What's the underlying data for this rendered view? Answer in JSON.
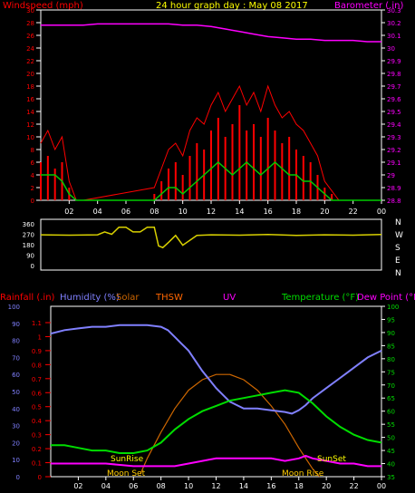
{
  "colors": {
    "wind": "#ff0000",
    "gust": "#ff0000",
    "avgwind": "#00cc00",
    "baro": "#ff00ff",
    "dir": "#d8d000",
    "rain": "#ff0000",
    "humidity": "#8080ff",
    "solar": "#cc6600",
    "thsw": "#ff6600",
    "uv": "#ff00ff",
    "temp": "#00dd00",
    "dew": "#ff00ff",
    "sunrise": "#ffff00",
    "sunset": "#ffff00",
    "moon": "#ffcc00",
    "axis": "#ffffff"
  },
  "chart_data": [
    {
      "type": "line",
      "title": "24 hour graph day : May 08 2017",
      "left_label": "Windspeed (mph)",
      "right_label": "Barometer (.in)",
      "x_ticks": [
        "02",
        "04",
        "06",
        "08",
        "10",
        "12",
        "14",
        "16",
        "18",
        "20",
        "22",
        "00"
      ],
      "y_ticks_left": [
        "0",
        "2",
        "4",
        "6",
        "8",
        "10",
        "12",
        "14",
        "16",
        "18",
        "20",
        "22",
        "24",
        "26",
        "28",
        "30"
      ],
      "y_ticks_right": [
        "28.8",
        "28.9",
        "29",
        "29.1",
        "29.2",
        "29.3",
        "29.4",
        "29.5",
        "29.6",
        "29.7",
        "29.8",
        "29.9",
        "30",
        "30.1",
        "30.2",
        "30.3"
      ],
      "ylim_left": [
        0,
        30
      ],
      "ylim_right": [
        28.8,
        30.3
      ],
      "series": [
        {
          "name": "Windspeed",
          "x": [
            0,
            0.5,
            1,
            1.5,
            2,
            2.5,
            3,
            3.5,
            4,
            4.5,
            5,
            5.5,
            6,
            6.5,
            7,
            7.5,
            8,
            8.5,
            9,
            9.5,
            10,
            10.5,
            11,
            11.5,
            12,
            12.5,
            13,
            13.5,
            14,
            14.5,
            15,
            15.5,
            16,
            16.5,
            17,
            17.5,
            18,
            18.5,
            19,
            19.5,
            20,
            20.5,
            21,
            22,
            23,
            24
          ],
          "values": [
            6,
            7,
            5,
            6,
            2,
            0,
            0,
            0,
            0,
            0,
            0,
            0,
            0,
            0,
            0,
            0,
            1,
            3,
            5,
            6,
            4,
            7,
            9,
            8,
            11,
            13,
            10,
            12,
            15,
            11,
            12,
            10,
            13,
            11,
            9,
            10,
            8,
            7,
            6,
            4,
            2,
            1,
            0,
            0,
            0,
            0
          ]
        },
        {
          "name": "Wind gust",
          "x": [
            0,
            0.5,
            1,
            1.5,
            2,
            2.5,
            3,
            8,
            8.5,
            9,
            9.5,
            10,
            10.5,
            11,
            11.5,
            12,
            12.5,
            13,
            13.5,
            14,
            14.5,
            15,
            15.5,
            16,
            16.5,
            17,
            17.5,
            18,
            18.5,
            19,
            19.5,
            20,
            21,
            24
          ],
          "values": [
            9,
            11,
            8,
            10,
            3,
            0,
            0,
            2,
            5,
            8,
            9,
            7,
            11,
            13,
            12,
            15,
            17,
            14,
            16,
            18,
            15,
            17,
            14,
            18,
            15,
            13,
            14,
            12,
            11,
            9,
            7,
            3,
            0,
            0
          ]
        },
        {
          "name": "Average wind",
          "x": [
            0,
            0.5,
            1,
            1.5,
            2,
            2.5,
            3,
            4,
            6,
            8,
            8.5,
            9,
            9.5,
            10,
            10.5,
            11,
            11.5,
            12,
            12.5,
            13,
            13.5,
            14,
            14.5,
            15,
            15.5,
            16,
            16.5,
            17,
            17.5,
            18,
            18.5,
            19,
            19.5,
            20,
            20.5,
            21,
            24
          ],
          "values": [
            4,
            4,
            4,
            3,
            1,
            0,
            0,
            0,
            0,
            0,
            1,
            2,
            2,
            1,
            2,
            3,
            4,
            5,
            6,
            5,
            4,
            5,
            6,
            5,
            4,
            5,
            6,
            5,
            4,
            4,
            3,
            3,
            2,
            1,
            0,
            0,
            0
          ]
        },
        {
          "name": "Barometer",
          "axis": "right",
          "x": [
            0,
            1,
            2,
            3,
            4,
            5,
            6,
            7,
            8,
            9,
            10,
            11,
            12,
            13,
            14,
            15,
            16,
            17,
            18,
            19,
            20,
            21,
            22,
            23,
            24
          ],
          "values": [
            30.18,
            30.18,
            30.18,
            30.18,
            30.19,
            30.19,
            30.19,
            30.19,
            30.19,
            30.19,
            30.18,
            30.18,
            30.17,
            30.15,
            30.13,
            30.11,
            30.09,
            30.08,
            30.07,
            30.07,
            30.06,
            30.06,
            30.06,
            30.05,
            30.05
          ]
        }
      ]
    },
    {
      "type": "line",
      "title": "Wind direction",
      "y_ticks_left": [
        "360",
        "270",
        "180",
        "90",
        "0"
      ],
      "compass": [
        "N",
        "W",
        "S",
        "E",
        "N"
      ],
      "ylim": [
        0,
        360
      ],
      "series": [
        {
          "name": "Wind direction",
          "x": [
            0,
            2,
            4,
            4.5,
            5,
            5.5,
            6,
            6.5,
            7,
            7.5,
            8,
            8.3,
            8.6,
            9,
            9.5,
            10,
            11,
            12,
            14,
            16,
            18,
            20,
            22,
            24
          ],
          "values": [
            265,
            262,
            265,
            290,
            270,
            330,
            330,
            290,
            290,
            330,
            330,
            170,
            155,
            200,
            260,
            175,
            260,
            265,
            262,
            268,
            260,
            265,
            262,
            268
          ]
        }
      ]
    },
    {
      "type": "line",
      "header_labels": [
        "Rainfall (.in)",
        "Humidity (%)",
        "Solar",
        "THSW",
        "UV",
        "Temperature (°F)",
        "Dew Point (°F"
      ],
      "y_ticks_humidity": [
        "0",
        "10",
        "20",
        "30",
        "40",
        "50",
        "60",
        "70",
        "80",
        "90",
        "100"
      ],
      "y_ticks_rain": [
        "0",
        "0.1",
        "0.2",
        "0.3",
        "0.4",
        "0.5",
        "0.6",
        "0.7",
        "0.8",
        "0.9",
        "1",
        "1.1"
      ],
      "y_ticks_temp": [
        "35",
        "40",
        "45",
        "50",
        "55",
        "60",
        "65",
        "70",
        "75",
        "80",
        "85",
        "90",
        "95",
        "100"
      ],
      "annotations": [
        "SunRise",
        "SunSet",
        "Moon Set",
        "Moon Rise"
      ],
      "ylim_humidity": [
        0,
        100
      ],
      "ylim_temp": [
        35,
        100
      ],
      "series": [
        {
          "name": "Humidity",
          "x": [
            0,
            1,
            2,
            3,
            4,
            5,
            6,
            7,
            8,
            8.5,
            9,
            9.5,
            10,
            10.5,
            11,
            11.5,
            12,
            12.5,
            13,
            13.5,
            14,
            15,
            16,
            17,
            17.5,
            18,
            18.5,
            19,
            20,
            21,
            22,
            23,
            24
          ],
          "values": [
            84,
            86,
            87,
            88,
            88,
            89,
            89,
            89,
            88,
            86,
            82,
            78,
            74,
            68,
            62,
            57,
            52,
            48,
            44,
            42,
            40,
            40,
            39,
            38,
            37,
            39,
            42,
            46,
            52,
            58,
            64,
            70,
            74
          ]
        },
        {
          "name": "Temperature",
          "x": [
            0,
            1,
            2,
            3,
            4,
            5,
            6,
            7,
            8,
            9,
            10,
            11,
            12,
            13,
            14,
            15,
            16,
            17,
            18,
            19,
            20,
            21,
            22,
            23,
            24
          ],
          "values": [
            47,
            47,
            46,
            45,
            45,
            44,
            44,
            45,
            48,
            53,
            57,
            60,
            62,
            64,
            65,
            66,
            67,
            68,
            67,
            63,
            58,
            54,
            51,
            49,
            48
          ]
        },
        {
          "name": "Dew Point",
          "x": [
            0,
            2,
            4,
            6,
            8,
            9,
            10,
            11,
            12,
            13,
            14,
            15,
            16,
            17,
            18,
            18.5,
            19,
            20,
            21,
            22,
            23,
            24
          ],
          "values": [
            40,
            40,
            40,
            39,
            39,
            39,
            40,
            41,
            42,
            42,
            42,
            42,
            42,
            41,
            42,
            43,
            42,
            41,
            40,
            40,
            39,
            39
          ]
        },
        {
          "name": "Solar",
          "x": [
            6.5,
            7,
            8,
            9,
            10,
            11,
            12,
            13,
            14,
            15,
            16,
            17,
            18,
            19,
            19.5
          ],
          "values": [
            36,
            42,
            52,
            61,
            68,
            72,
            74,
            74,
            72,
            68,
            62,
            55,
            46,
            38,
            35
          ]
        }
      ]
    }
  ]
}
